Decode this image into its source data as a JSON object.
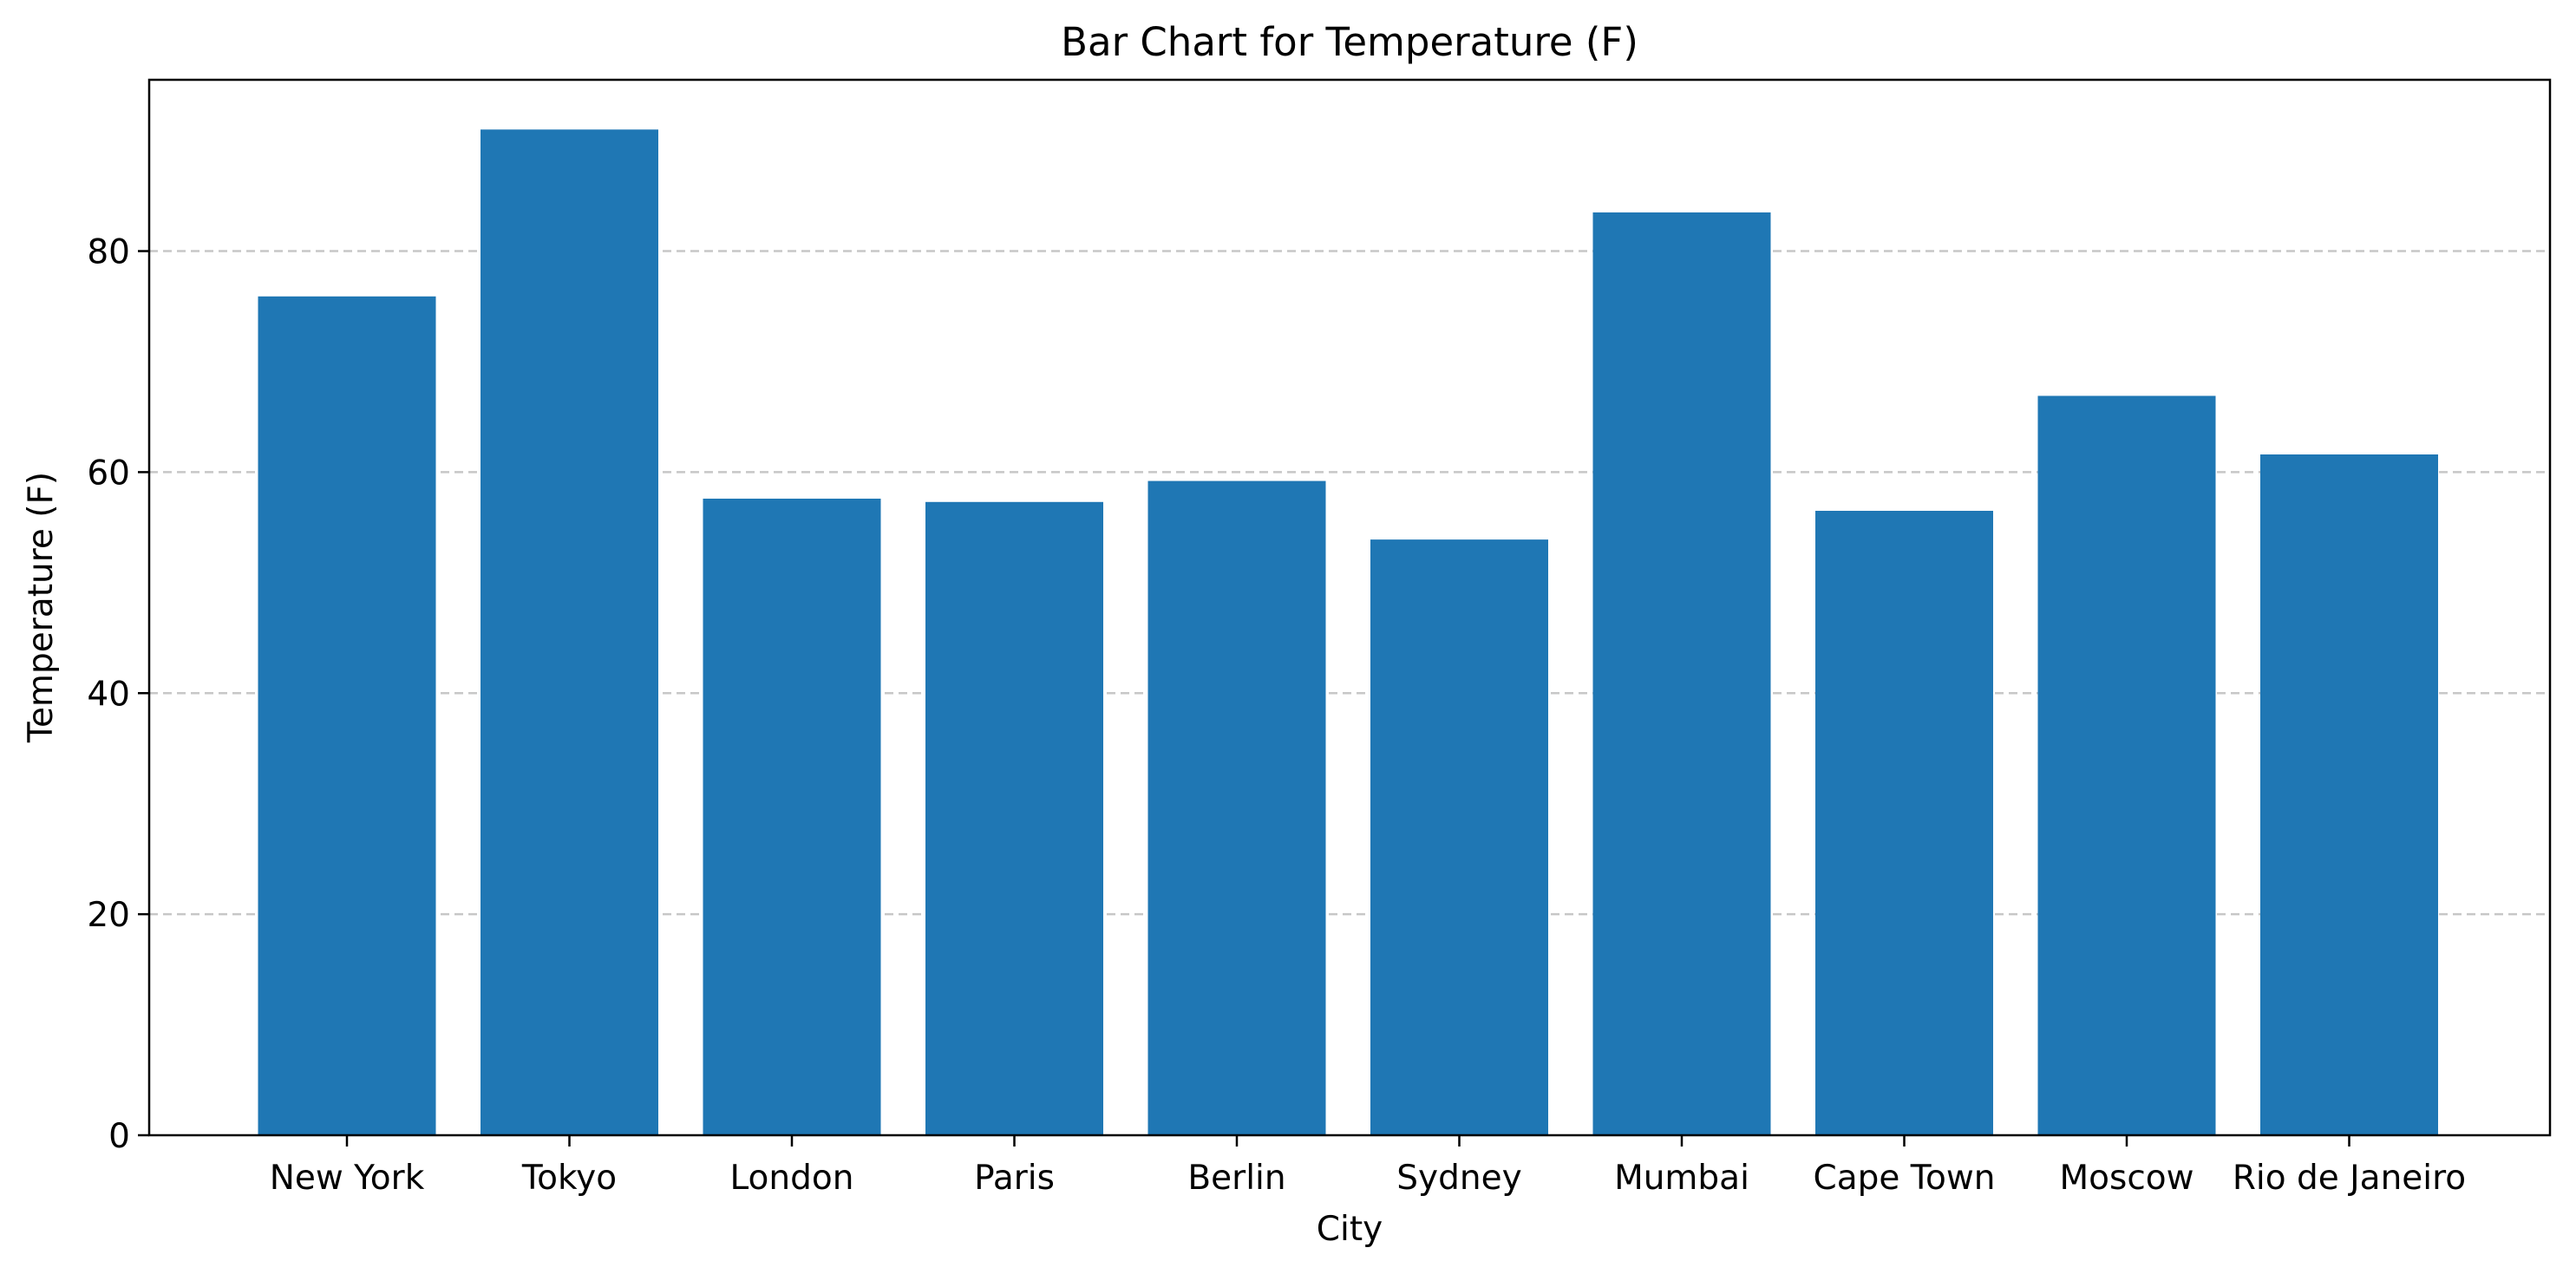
{
  "chart_data": {
    "type": "bar",
    "title": "Bar Chart for Temperature (F)",
    "xlabel": "City",
    "ylabel": "Temperature (F)",
    "categories": [
      "New York",
      "Tokyo",
      "London",
      "Paris",
      "Berlin",
      "Sydney",
      "Mumbai",
      "Cape Town",
      "Moscow",
      "Rio de Janeiro"
    ],
    "values": [
      75.9,
      91.0,
      57.6,
      57.3,
      59.2,
      53.9,
      83.5,
      56.5,
      66.9,
      61.6
    ],
    "ylim": [
      0,
      95.5
    ],
    "yticks": [
      0,
      20,
      40,
      60,
      80
    ],
    "grid": "y-dashed",
    "bar_color": "#1f77b4"
  }
}
